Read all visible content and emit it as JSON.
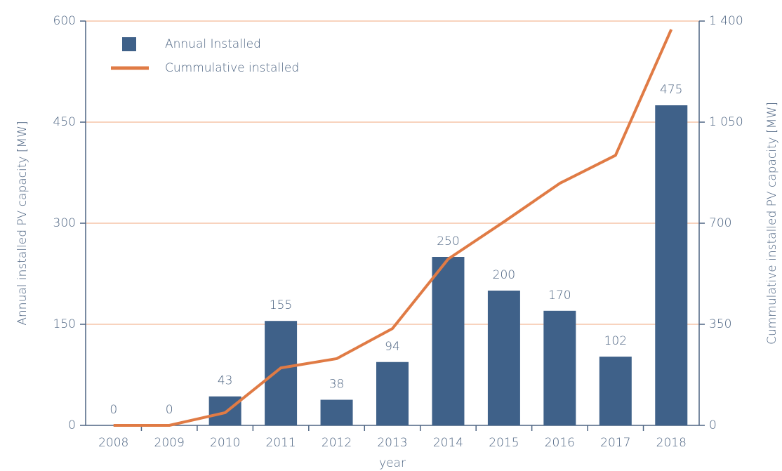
{
  "chart_data": {
    "type": "combo",
    "xlabel": "year",
    "ylabel": "Annual installed PV capacity [MW]",
    "y2label": "Cummulative installed PV capacity [MW]",
    "categories": [
      "2008",
      "2009",
      "2010",
      "2011",
      "2012",
      "2013",
      "2014",
      "2015",
      "2016",
      "2017",
      "2018"
    ],
    "series": [
      {
        "name": "Annual Installed",
        "type": "bar",
        "color": "#3f6189",
        "values": [
          0,
          0,
          43,
          155,
          38,
          94,
          250,
          200,
          170,
          102,
          475
        ]
      },
      {
        "name": "Cummulative installed",
        "type": "line",
        "axis": "y2",
        "color": "#e07b45",
        "values": [
          0,
          0,
          44,
          199,
          231,
          335,
          576,
          705,
          838,
          935,
          1371
        ]
      }
    ],
    "ylim": [
      0,
      600
    ],
    "yticks": [
      0,
      150,
      300,
      450,
      600
    ],
    "y2lim": [
      0,
      1400
    ],
    "y2ticks": [
      0,
      350,
      700,
      {
        "value": 1050,
        "label": "1 050"
      },
      {
        "value": 1400,
        "label": "1 400"
      }
    ],
    "grid": true,
    "legend": "upper left"
  }
}
